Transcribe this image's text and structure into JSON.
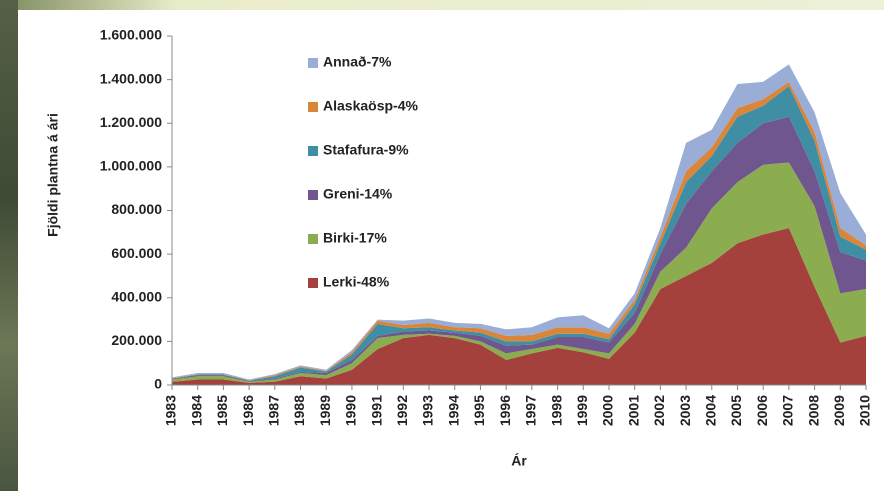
{
  "chart_data": {
    "type": "stacked-area",
    "x_label": "Ár",
    "y_label": "Fjöldi plantna á ári",
    "categories": [
      "1983",
      "1984",
      "1985",
      "1986",
      "1987",
      "1988",
      "1989",
      "1990",
      "1991",
      "1992",
      "1993",
      "1994",
      "1995",
      "1996",
      "1997",
      "1998",
      "1999",
      "2000",
      "2001",
      "2002",
      "2003",
      "2004",
      "2005",
      "2006",
      "2007",
      "2008",
      "2009",
      "2010"
    ],
    "ylim": [
      0,
      1600000
    ],
    "yticks": [
      0,
      {
        "value": 200000,
        "label": "200.000"
      },
      {
        "value": 400000,
        "label": "400.000"
      },
      {
        "value": 600000,
        "label": "600.000"
      },
      {
        "value": 800000,
        "label": "800.000"
      },
      {
        "value": 1000000,
        "label": "1.000.000"
      },
      {
        "value": 1200000,
        "label": "1.200.000"
      },
      {
        "value": 1400000,
        "label": "1.400.000"
      },
      {
        "value": 1600000,
        "label": "1.600.000"
      }
    ],
    "grid": false,
    "series": [
      {
        "name": "Lerki-48%",
        "color": "#a5413d",
        "values": [
          15000,
          25000,
          25000,
          10000,
          15000,
          40000,
          30000,
          70000,
          165000,
          215000,
          230000,
          215000,
          185000,
          115000,
          145000,
          170000,
          150000,
          120000,
          240000,
          440000,
          500000,
          560000,
          650000,
          690000,
          720000,
          450000,
          195000,
          225000
        ]
      },
      {
        "name": "Birki-17%",
        "color": "#8cad4f",
        "values": [
          10000,
          15000,
          15000,
          5000,
          10000,
          15000,
          15000,
          30000,
          50000,
          15000,
          5000,
          10000,
          15000,
          30000,
          20000,
          15000,
          15000,
          25000,
          40000,
          80000,
          130000,
          250000,
          280000,
          320000,
          300000,
          370000,
          225000,
          215000
        ]
      },
      {
        "name": "Greni-14%",
        "color": "#6f568f",
        "values": [
          3000,
          5000,
          5000,
          3000,
          5000,
          5000,
          10000,
          15000,
          10000,
          15000,
          15000,
          15000,
          25000,
          35000,
          20000,
          35000,
          55000,
          50000,
          50000,
          80000,
          200000,
          170000,
          180000,
          190000,
          210000,
          160000,
          190000,
          130000
        ]
      },
      {
        "name": "Stafafura-9%",
        "color": "#3f8ea3",
        "values": [
          2000,
          3000,
          3000,
          2000,
          10000,
          20000,
          7000,
          25000,
          55000,
          15000,
          15000,
          10000,
          15000,
          20000,
          15000,
          15000,
          15000,
          15000,
          40000,
          50000,
          100000,
          70000,
          120000,
          80000,
          140000,
          140000,
          70000,
          50000
        ]
      },
      {
        "name": "Alaskaösp-4%",
        "color": "#d9863a",
        "values": [
          2000,
          2000,
          2000,
          2000,
          5000,
          5000,
          3000,
          10000,
          15000,
          15000,
          20000,
          15000,
          20000,
          25000,
          30000,
          30000,
          30000,
          25000,
          20000,
          30000,
          50000,
          40000,
          40000,
          30000,
          20000,
          40000,
          40000,
          20000
        ]
      },
      {
        "name": "Annað-7%",
        "color": "#9aadd6",
        "values": [
          3000,
          5000,
          5000,
          3000,
          5000,
          5000,
          5000,
          10000,
          5000,
          20000,
          20000,
          20000,
          20000,
          30000,
          35000,
          45000,
          55000,
          25000,
          30000,
          40000,
          130000,
          80000,
          110000,
          80000,
          80000,
          90000,
          160000,
          50000
        ]
      }
    ]
  }
}
